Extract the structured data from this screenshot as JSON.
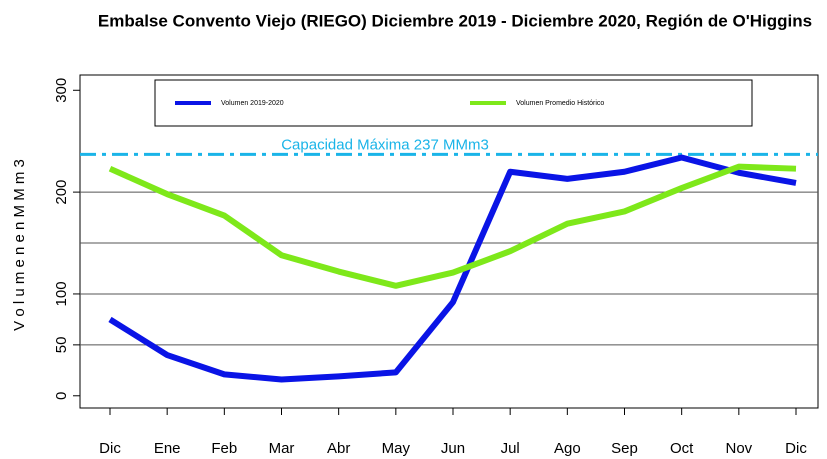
{
  "chart_data": {
    "type": "line",
    "title": "Embalse Convento Viejo (RIEGO) Diciembre 2019 - Diciembre 2020, Región de O'Higgins",
    "y_label": "V o l u m e n   e n   M M m 3",
    "categories": [
      "Dic",
      "Ene",
      "Feb",
      "Mar",
      "Abr",
      "May",
      "Jun",
      "Jul",
      "Ago",
      "Sep",
      "Oct",
      "Nov",
      "Dic"
    ],
    "series": [
      {
        "name": "Volumen 2019-2020",
        "color": "#0a14e6",
        "values": [
          75,
          40,
          21,
          16,
          19,
          23,
          92,
          220,
          213,
          220,
          234,
          219,
          209
        ]
      },
      {
        "name": "Volumen Promedio Histórico",
        "color": "#7ee81a",
        "values": [
          223,
          198,
          177,
          138,
          122,
          108,
          121,
          142,
          169,
          181,
          204,
          225,
          223
        ]
      }
    ],
    "capacity": {
      "value": 237,
      "label": "Capacidad Máxima 237 MMm3",
      "color": "#1ab4e8"
    },
    "ylim": [
      -12,
      315
    ],
    "yticks": [
      0,
      50,
      100,
      200,
      300
    ],
    "gridlines": [
      50,
      100,
      150,
      200
    ],
    "legend": "top"
  }
}
